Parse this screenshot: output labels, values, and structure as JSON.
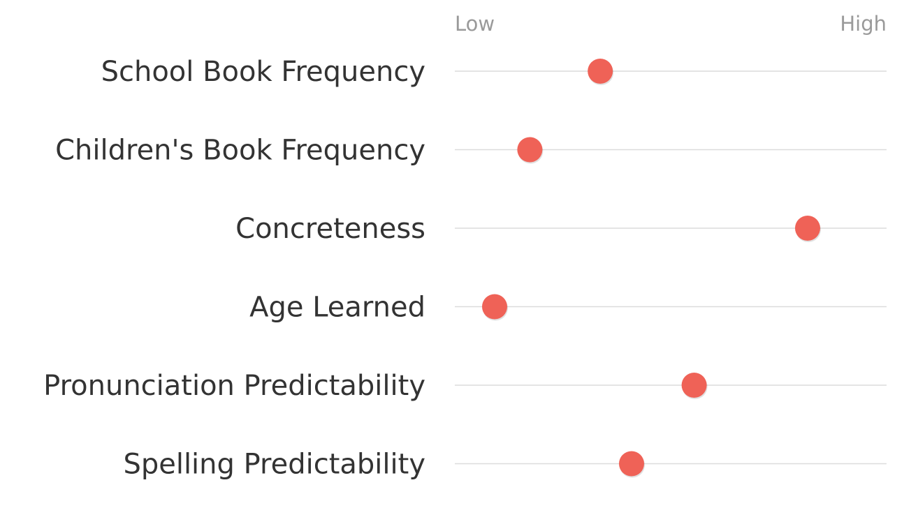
{
  "chart_data": {
    "type": "scatter",
    "x_min_label": "Low",
    "x_max_label": "High",
    "xlim": [
      0,
      1
    ],
    "categories": [
      "School Book Frequency",
      "Children's Book Frequency",
      "Concreteness",
      "Age Learned",
      "Pronunciation Predictability",
      "Spelling Predictability"
    ],
    "values": [
      0.32,
      0.14,
      0.85,
      0.05,
      0.56,
      0.4
    ],
    "colors": {
      "dot": "#ef6257",
      "track": "#dcdcdc",
      "label": "#333333",
      "axis_label": "#9a9a9a"
    }
  }
}
